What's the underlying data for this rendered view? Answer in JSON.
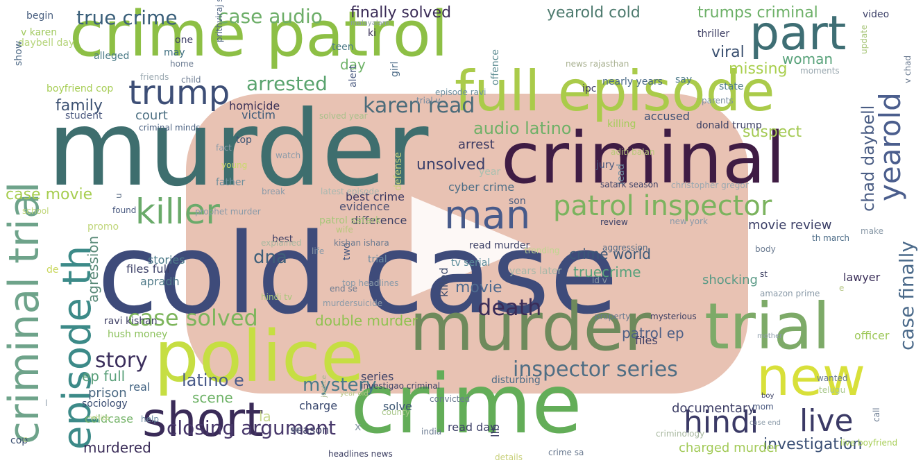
{
  "logo": {
    "icon": "play-button-logo-icon",
    "badge_color": "#e3b4a2"
  },
  "words": [
    {
      "t": "cold case",
      "c": "#3e4b7a"
    },
    {
      "t": "crime patrol",
      "c": "#8dbf45"
    },
    {
      "t": "murder",
      "c": "#3e6e6e"
    },
    {
      "t": "criminal",
      "c": "#3f1c44"
    },
    {
      "t": "full episode",
      "c": "#aacb4a"
    },
    {
      "t": "crime",
      "c": "#63ad58"
    },
    {
      "t": "police",
      "c": "#c6de42"
    },
    {
      "t": "murder",
      "c": "#6e8a5c"
    },
    {
      "t": "trial",
      "c": "#7daa68"
    },
    {
      "t": "criminal trial",
      "c": "#6ea38a"
    },
    {
      "t": "episode th",
      "c": "#3c8a88"
    },
    {
      "t": "new",
      "c": "#d8e03a"
    },
    {
      "t": "part",
      "c": "#3e6e74"
    },
    {
      "t": "yearold",
      "c": "#4b5e8d"
    },
    {
      "t": "short",
      "c": "#3a2b58"
    },
    {
      "t": "hindi",
      "c": "#3b3a66"
    },
    {
      "t": "live",
      "c": "#3b3a66"
    },
    {
      "t": "killer",
      "c": "#6aaa6a"
    },
    {
      "t": "man",
      "c": "#475a8a"
    },
    {
      "t": "patrol inspector",
      "c": "#7bb35e"
    },
    {
      "t": "trump",
      "c": "#3d4e76"
    },
    {
      "t": "case finally",
      "c": "#4b6a8a"
    },
    {
      "t": "inspector series",
      "c": "#4f6e84"
    },
    {
      "t": "closing argument",
      "c": "#47376a"
    },
    {
      "t": "true crime",
      "c": "#3a5f7a"
    },
    {
      "t": "case audio",
      "c": "#6dae68"
    },
    {
      "t": "finally solved",
      "c": "#3b2c57"
    },
    {
      "t": "yearold cold",
      "c": "#4d7a6e"
    },
    {
      "t": "trumps criminal",
      "c": "#6cb067"
    },
    {
      "t": "karen read",
      "c": "#4a6b7a"
    },
    {
      "t": "audio latino",
      "c": "#6fb067"
    },
    {
      "t": "arrested",
      "c": "#59a36e"
    },
    {
      "t": "case solved",
      "c": "#7db55c"
    },
    {
      "t": "death",
      "c": "#3a2c58"
    },
    {
      "t": "story",
      "c": "#3b2e5c"
    },
    {
      "t": "mystery",
      "c": "#4a7a8a"
    },
    {
      "t": "latino e",
      "c": "#4a5b8a"
    },
    {
      "t": "ep full",
      "c": "#5aa07a"
    },
    {
      "t": "murdered",
      "c": "#3a2c58"
    },
    {
      "t": "investigation",
      "c": "#3a4f75"
    },
    {
      "t": "family",
      "c": "#3d5273"
    },
    {
      "t": "agression",
      "c": "#5a8a78"
    },
    {
      "t": "dna",
      "c": "#3e5f7a"
    },
    {
      "t": "movie",
      "c": "#4e6a8e"
    },
    {
      "t": "viral",
      "c": "#3a5070"
    },
    {
      "t": "woman",
      "c": "#58a27a"
    },
    {
      "t": "missing",
      "c": "#a9cf4e"
    },
    {
      "t": "suspect",
      "c": "#a4ca53"
    },
    {
      "t": "chad daybell",
      "c": "#4a5d84"
    },
    {
      "t": "unsolved",
      "c": "#3a3f6a"
    },
    {
      "t": "documentary",
      "c": "#3d3e66"
    },
    {
      "t": "case movie",
      "c": "#a6cd4f"
    },
    {
      "t": "scene",
      "c": "#6fb368"
    },
    {
      "t": "prison",
      "c": "#4c6a84"
    },
    {
      "t": "day",
      "c": "#6fb368"
    },
    {
      "t": "arrest",
      "c": "#3c3a62"
    },
    {
      "t": "killed",
      "c": "#3f4d6e"
    },
    {
      "t": "shocking",
      "c": "#5a9a86"
    },
    {
      "t": "double murder",
      "c": "#8fc24f"
    },
    {
      "t": "truecrime",
      "c": "#57a17b"
    },
    {
      "t": "crime world",
      "c": "#3b5778"
    },
    {
      "t": "patrol ep",
      "c": "#4d5f86"
    },
    {
      "t": "accused",
      "c": "#3b4e74"
    },
    {
      "t": "files",
      "c": "#3b3c64"
    },
    {
      "t": "lawyer",
      "c": "#3a2e58"
    },
    {
      "t": "officer",
      "c": "#9ec85a"
    },
    {
      "t": "charged murder",
      "c": "#a2ca57"
    },
    {
      "t": "movie review",
      "c": "#3a3e66"
    },
    {
      "t": "court",
      "c": "#4c6f82"
    },
    {
      "t": "victim",
      "c": "#3b5978"
    },
    {
      "t": "homicide",
      "c": "#3a3056"
    },
    {
      "t": "best crime",
      "c": "#3d3962"
    },
    {
      "t": "evidence",
      "c": "#4b4f72"
    },
    {
      "t": "difference",
      "c": "#3c3e62"
    },
    {
      "t": "cyber crime",
      "c": "#4c6e86"
    },
    {
      "t": "stories",
      "c": "#4e7b8a"
    },
    {
      "t": "files full",
      "c": "#3a3e66"
    },
    {
      "t": "apradh",
      "c": "#4f7a88"
    },
    {
      "t": "ravi kishan",
      "c": "#3b3c62"
    },
    {
      "t": "hush money",
      "c": "#8ac05a"
    },
    {
      "t": "real",
      "c": "#3f6080"
    },
    {
      "t": "charge",
      "c": "#3b4a70"
    },
    {
      "t": "solve",
      "c": "#3a5572"
    },
    {
      "t": "read day",
      "c": "#3b3e66"
    },
    {
      "t": "llb",
      "c": "#3b3e66"
    },
    {
      "t": "season",
      "c": "#3b3c64"
    },
    {
      "t": "coldcase",
      "c": "#76b46a"
    },
    {
      "t": "sociology",
      "c": "#3a4d72"
    },
    {
      "t": "cop",
      "c": "#3a4f70"
    },
    {
      "t": "begin",
      "c": "#4a6080"
    },
    {
      "t": "v karen",
      "c": "#a0c95e"
    },
    {
      "t": "daybell day",
      "c": "#b5d47a"
    },
    {
      "t": "alleged",
      "c": "#4a7a86"
    },
    {
      "t": "may",
      "c": "#3f6f80"
    },
    {
      "t": "one",
      "c": "#3c3d64"
    },
    {
      "t": "teen",
      "c": "#4f7c88"
    },
    {
      "t": "ki",
      "c": "#3a3058"
    },
    {
      "t": "offence",
      "c": "#5a8a90"
    },
    {
      "t": "thriller",
      "c": "#3b3c62"
    },
    {
      "t": "show",
      "c": "#4f6a86"
    },
    {
      "t": "video",
      "c": "#3a3e66"
    },
    {
      "t": "boyfriend cop",
      "c": "#a6cd54"
    },
    {
      "t": "ipc",
      "c": "#3b3a62"
    },
    {
      "t": "nearly years",
      "c": "#4a6a86"
    },
    {
      "t": "state",
      "c": "#4f7c8a"
    },
    {
      "t": "say",
      "c": "#4f7c8a"
    },
    {
      "t": "student",
      "c": "#4c5a80"
    },
    {
      "t": "alert",
      "c": "#4a5a80"
    },
    {
      "t": "girl",
      "c": "#4b6a86"
    },
    {
      "t": "episode ravi",
      "c": "#6c8fa0"
    },
    {
      "t": "trial v",
      "c": "#6f88a0"
    },
    {
      "t": "killing",
      "c": "#a4cc5a"
    },
    {
      "t": "donald trump",
      "c": "#3c4064"
    },
    {
      "t": "parents",
      "c": "#7a8ea0"
    },
    {
      "t": "jury",
      "c": "#4a5a80"
    },
    {
      "t": "lead",
      "c": "#6e8ea0"
    },
    {
      "t": "top",
      "c": "#3c5474"
    },
    {
      "t": "young",
      "c": "#c8da6a"
    },
    {
      "t": "father",
      "c": "#6e8e9c"
    },
    {
      "t": "aditi balan",
      "c": "#b8c87a"
    },
    {
      "t": "year",
      "c": "#a8c0b0"
    },
    {
      "t": "son",
      "c": "#4a5e80"
    },
    {
      "t": "wife",
      "c": "#b6c87a"
    },
    {
      "t": "best",
      "c": "#3b3c62"
    },
    {
      "t": "patrol satark",
      "c": "#a8c67a"
    },
    {
      "t": "two",
      "c": "#4a5a80"
    },
    {
      "t": "trial",
      "c": "#6a8aa0"
    },
    {
      "t": "tv serial",
      "c": "#5a8a98"
    },
    {
      "t": "years later",
      "c": "#a6b8a8"
    },
    {
      "t": "read murder",
      "c": "#3c4066"
    },
    {
      "t": "de",
      "c": "#c8d65a"
    },
    {
      "t": "promo",
      "c": "#c0d67a"
    },
    {
      "t": "school",
      "c": "#c0d67a"
    },
    {
      "t": "found",
      "c": "#4a5a80"
    },
    {
      "t": "hindi tv",
      "c": "#a8c67a"
    },
    {
      "t": "end se",
      "c": "#6a7a90"
    },
    {
      "t": "top headlines",
      "c": "#8a9aa8"
    },
    {
      "t": "murdersuicide",
      "c": "#8a9aa8"
    },
    {
      "t": "help",
      "c": "#6a8aa0"
    },
    {
      "t": "white",
      "c": "#c8d890"
    },
    {
      "t": "justice",
      "c": "#a8b890"
    },
    {
      "t": "year old",
      "c": "#b8c88a"
    },
    {
      "t": "convicted",
      "c": "#6a7a90"
    },
    {
      "t": "county",
      "c": "#a8c68a"
    },
    {
      "t": "india",
      "c": "#6a7a90"
    },
    {
      "t": "details",
      "c": "#c8d07a"
    },
    {
      "t": "crime sa",
      "c": "#6a7a90"
    },
    {
      "t": "headlines news",
      "c": "#3c3e62"
    },
    {
      "t": "property",
      "c": "#6a7a90"
    },
    {
      "t": "mysterious",
      "c": "#3c3e62"
    },
    {
      "t": "telugu",
      "c": "#a8c88a"
    },
    {
      "t": "wanted",
      "c": "#6a7a90"
    },
    {
      "t": "mother",
      "c": "#8a9aa8"
    },
    {
      "t": "boy",
      "c": "#3c4066"
    },
    {
      "t": "st",
      "c": "#3c3e62"
    },
    {
      "t": "mom",
      "c": "#4a5a80"
    },
    {
      "t": "case end",
      "c": "#8a9aa8"
    },
    {
      "t": "criminology",
      "c": "#a8b8a0"
    },
    {
      "t": "live boyfriend",
      "c": "#a6cd54"
    },
    {
      "t": "call",
      "c": "#6a7a90"
    },
    {
      "t": "make",
      "c": "#8a9aa8"
    },
    {
      "t": "th march",
      "c": "#4a6a86"
    },
    {
      "t": "body",
      "c": "#6a7a90"
    },
    {
      "t": "aggression",
      "c": "#4f6a86"
    },
    {
      "t": "id v",
      "c": "#8a9aa8"
    },
    {
      "t": "amazon prime",
      "c": "#8a9aa8"
    },
    {
      "t": "review",
      "c": "#3c4066"
    },
    {
      "t": "new york",
      "c": "#8a9aa8"
    },
    {
      "t": "satark season",
      "c": "#3c4066"
    },
    {
      "t": "christopher gregor",
      "c": "#9aa8b0"
    },
    {
      "t": "v chad",
      "c": "#6a7a90"
    },
    {
      "t": "moments",
      "c": "#9aa8b0"
    },
    {
      "t": "update",
      "c": "#a8c67a"
    },
    {
      "t": "news rajasthan",
      "c": "#a8b090"
    },
    {
      "t": "malayalam",
      "c": "#8a9aa8"
    },
    {
      "t": "home",
      "c": "#6a7a90"
    },
    {
      "t": "friends",
      "c": "#9aa8b0"
    },
    {
      "t": "prithviraj sukumaran",
      "c": "#4a6080"
    },
    {
      "t": "child",
      "c": "#6a7a90"
    },
    {
      "t": "criminal minds",
      "c": "#4a6080"
    },
    {
      "t": "u",
      "c": "#6a7a90"
    },
    {
      "t": "fact",
      "c": "#8a9aa8"
    },
    {
      "t": "watch",
      "c": "#8a9aa8"
    },
    {
      "t": "break",
      "c": "#8a9aa8"
    },
    {
      "t": "latest episode",
      "c": "#a8b8b0"
    },
    {
      "t": "prophet murder",
      "c": "#8a9aa8"
    },
    {
      "t": "solved year",
      "c": "#a8c08a"
    },
    {
      "t": "defense",
      "c": "#c8d07a"
    },
    {
      "t": "trending",
      "c": "#c0d690"
    },
    {
      "t": "explained",
      "c": "#a8b8a0"
    },
    {
      "t": "life",
      "c": "#8a9aa8"
    },
    {
      "t": "kishan ishara",
      "c": "#6a7a90"
    },
    {
      "t": "investigao criminal",
      "c": "#3c4066"
    },
    {
      "t": "series",
      "c": "#3c4066"
    },
    {
      "t": "disturbing",
      "c": "#4a6a86"
    },
    {
      "t": "x",
      "c": "#8a9aa8"
    },
    {
      "t": "la",
      "c": "#c8d890"
    },
    {
      "t": "se",
      "c": "#6a7a90"
    },
    {
      "t": "c",
      "c": "#c8d890"
    },
    {
      "t": "l",
      "c": "#8a9aa8"
    },
    {
      "t": "e",
      "c": "#b8c88a"
    }
  ]
}
